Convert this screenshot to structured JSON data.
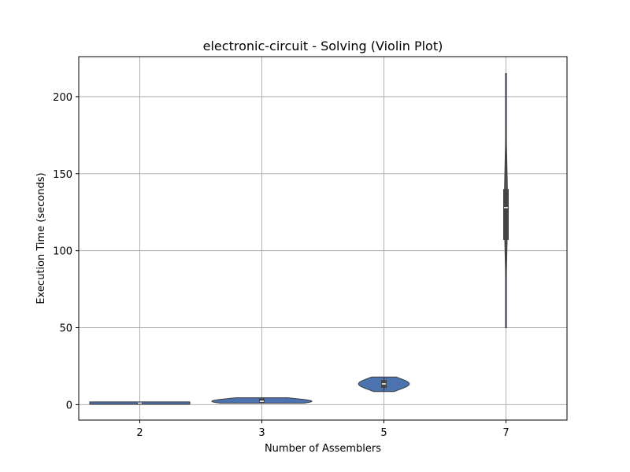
{
  "chart_data": {
    "type": "violin",
    "title": "electronic-circuit - Solving (Violin Plot)",
    "xlabel": "Number of Assemblers",
    "ylabel": "Execution Time (seconds)",
    "categories": [
      "2",
      "3",
      "5",
      "7"
    ],
    "ylim": [
      -10,
      226
    ],
    "yticks": [
      0,
      50,
      100,
      150,
      200
    ],
    "grid": true,
    "violin_color": "#4c72b0",
    "box_color": "#444444",
    "groups": [
      {
        "category": "2",
        "min": 0.8,
        "q1": 0.9,
        "median": 1.0,
        "q3": 1.1,
        "max": 1.3,
        "whisker_low": 0.8,
        "whisker_high": 1.3
      },
      {
        "category": "3",
        "min": 1.0,
        "q1": 1.3,
        "median": 2.2,
        "q3": 4.0,
        "max": 4.5,
        "whisker_low": 1.0,
        "whisker_high": 4.5
      },
      {
        "category": "5",
        "min": 8.5,
        "q1": 11.0,
        "median": 13.5,
        "q3": 16.0,
        "max": 18.0,
        "whisker_low": 8.5,
        "whisker_high": 18.0
      },
      {
        "category": "7",
        "min": 50,
        "q1": 107,
        "median": 128,
        "q3": 140,
        "max": 215,
        "whisker_low": 84,
        "whisker_high": 180
      }
    ]
  }
}
